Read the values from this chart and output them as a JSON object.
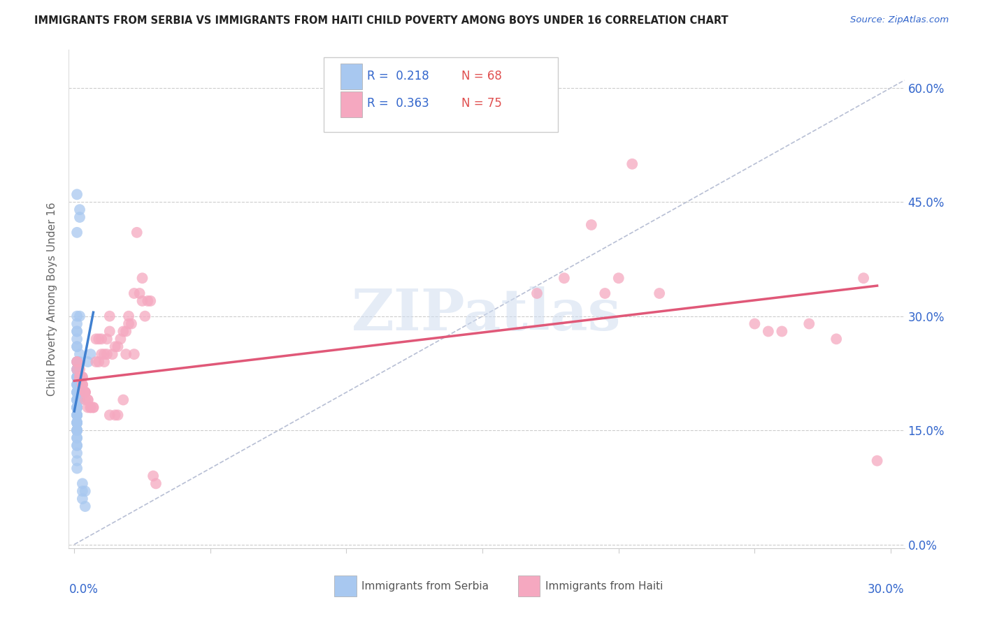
{
  "title": "IMMIGRANTS FROM SERBIA VS IMMIGRANTS FROM HAITI CHILD POVERTY AMONG BOYS UNDER 16 CORRELATION CHART",
  "source": "Source: ZipAtlas.com",
  "x_tick_positions": [
    0.0,
    0.05,
    0.1,
    0.15,
    0.2,
    0.25,
    0.3
  ],
  "x_tick_labels": [
    "",
    "",
    "",
    "",
    "",
    "",
    ""
  ],
  "y_tick_positions": [
    0.0,
    0.15,
    0.3,
    0.45,
    0.6
  ],
  "y_tick_labels": [
    "0.0%",
    "15.0%",
    "30.0%",
    "45.0%",
    "60.0%"
  ],
  "bottom_x_left_label": "0.0%",
  "bottom_x_right_label": "30.0%",
  "ylabel_label": "Child Poverty Among Boys Under 16",
  "xlim": [
    -0.002,
    0.305
  ],
  "ylim": [
    -0.005,
    0.65
  ],
  "legend_r1": "R =  0.218",
  "legend_n1": "N = 68",
  "legend_r2": "R =  0.363",
  "legend_n2": "N = 75",
  "legend_x_label": "Immigrants from Serbia",
  "legend_y_label": "Immigrants from Haiti",
  "watermark": "ZIPatlas",
  "serbia_color": "#a8c8f0",
  "haiti_color": "#f5a8c0",
  "serbia_line_color": "#4080d0",
  "haiti_line_color": "#e05878",
  "diagonal_line_color": "#b0b8d0",
  "serbia_scatter_x": [
    0.001,
    0.002,
    0.002,
    0.001,
    0.002,
    0.001,
    0.001,
    0.001,
    0.001,
    0.001,
    0.001,
    0.001,
    0.002,
    0.001,
    0.001,
    0.001,
    0.001,
    0.001,
    0.001,
    0.001,
    0.001,
    0.001,
    0.001,
    0.001,
    0.001,
    0.001,
    0.001,
    0.001,
    0.001,
    0.001,
    0.001,
    0.001,
    0.001,
    0.001,
    0.001,
    0.001,
    0.001,
    0.001,
    0.001,
    0.001,
    0.001,
    0.001,
    0.001,
    0.001,
    0.001,
    0.001,
    0.001,
    0.001,
    0.001,
    0.001,
    0.001,
    0.001,
    0.001,
    0.001,
    0.001,
    0.001,
    0.001,
    0.002,
    0.002,
    0.002,
    0.002,
    0.003,
    0.003,
    0.003,
    0.004,
    0.004,
    0.005,
    0.006
  ],
  "serbia_scatter_y": [
    0.46,
    0.44,
    0.43,
    0.41,
    0.3,
    0.3,
    0.29,
    0.28,
    0.28,
    0.27,
    0.26,
    0.26,
    0.25,
    0.24,
    0.24,
    0.23,
    0.23,
    0.23,
    0.22,
    0.22,
    0.22,
    0.21,
    0.21,
    0.21,
    0.2,
    0.2,
    0.2,
    0.2,
    0.19,
    0.19,
    0.19,
    0.19,
    0.19,
    0.18,
    0.18,
    0.18,
    0.18,
    0.18,
    0.17,
    0.17,
    0.17,
    0.17,
    0.16,
    0.16,
    0.16,
    0.16,
    0.15,
    0.15,
    0.15,
    0.15,
    0.14,
    0.14,
    0.13,
    0.13,
    0.12,
    0.11,
    0.1,
    0.24,
    0.22,
    0.2,
    0.19,
    0.08,
    0.07,
    0.06,
    0.07,
    0.05,
    0.24,
    0.25
  ],
  "haiti_scatter_x": [
    0.001,
    0.001,
    0.001,
    0.002,
    0.002,
    0.002,
    0.002,
    0.003,
    0.003,
    0.003,
    0.003,
    0.003,
    0.004,
    0.004,
    0.004,
    0.004,
    0.004,
    0.005,
    0.005,
    0.005,
    0.006,
    0.006,
    0.007,
    0.007,
    0.008,
    0.008,
    0.009,
    0.009,
    0.01,
    0.01,
    0.011,
    0.011,
    0.012,
    0.012,
    0.013,
    0.013,
    0.013,
    0.014,
    0.015,
    0.015,
    0.016,
    0.016,
    0.017,
    0.018,
    0.018,
    0.019,
    0.019,
    0.02,
    0.02,
    0.021,
    0.022,
    0.022,
    0.023,
    0.024,
    0.025,
    0.025,
    0.026,
    0.027,
    0.028,
    0.029,
    0.03,
    0.17,
    0.18,
    0.19,
    0.195,
    0.2,
    0.205,
    0.215,
    0.25,
    0.255,
    0.26,
    0.27,
    0.28,
    0.29,
    0.295
  ],
  "haiti_scatter_y": [
    0.24,
    0.24,
    0.23,
    0.23,
    0.22,
    0.22,
    0.22,
    0.22,
    0.22,
    0.21,
    0.21,
    0.21,
    0.2,
    0.2,
    0.2,
    0.2,
    0.19,
    0.19,
    0.19,
    0.18,
    0.18,
    0.18,
    0.18,
    0.18,
    0.24,
    0.27,
    0.24,
    0.27,
    0.27,
    0.25,
    0.25,
    0.24,
    0.25,
    0.27,
    0.17,
    0.28,
    0.3,
    0.25,
    0.26,
    0.17,
    0.17,
    0.26,
    0.27,
    0.28,
    0.19,
    0.25,
    0.28,
    0.29,
    0.3,
    0.29,
    0.25,
    0.33,
    0.41,
    0.33,
    0.32,
    0.35,
    0.3,
    0.32,
    0.32,
    0.09,
    0.08,
    0.33,
    0.35,
    0.42,
    0.33,
    0.35,
    0.5,
    0.33,
    0.29,
    0.28,
    0.28,
    0.29,
    0.27,
    0.35,
    0.11
  ],
  "serbia_trend": [
    0.0,
    0.007,
    0.175,
    0.305
  ],
  "haiti_trend": [
    0.0,
    0.295,
    0.215,
    0.34
  ],
  "diagonal": [
    0.0,
    0.305,
    0.0,
    0.61
  ]
}
